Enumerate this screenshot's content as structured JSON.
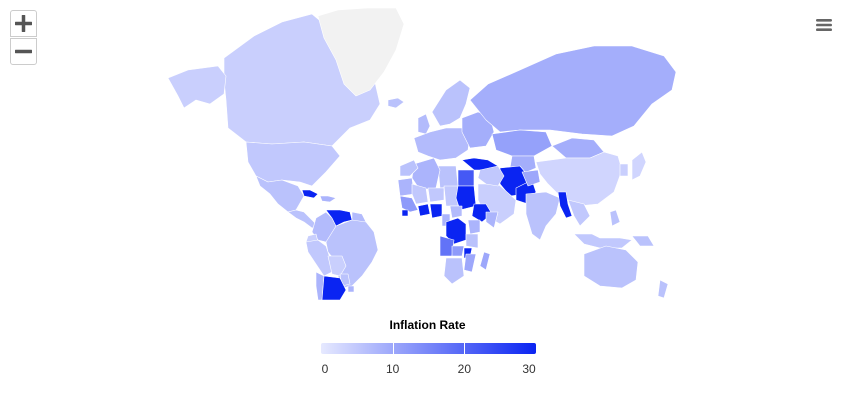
{
  "controls": {
    "zoom_in_icon": "plus-icon",
    "zoom_out_icon": "minus-icon",
    "menu_icon": "hamburger-menu-icon"
  },
  "chart_data": {
    "type": "choropleth-map",
    "title": "",
    "legend": {
      "title": "Inflation Rate",
      "min": 0,
      "max": 30,
      "ticks": [
        0,
        10,
        20,
        30
      ],
      "color_min": "#e6e9ff",
      "color_max": "#0a24f2",
      "no_data_color": "#f2f2f2"
    },
    "colors": {
      "ocean": "#ffffff",
      "border": "#ffffff",
      "zoom_icon": "#555555",
      "menu_icon": "#666666"
    },
    "regions": [
      {
        "name": "Canada",
        "value": 4
      },
      {
        "name": "Greenland",
        "value": null
      },
      {
        "name": "Alaska",
        "value": 4
      },
      {
        "name": "United States",
        "value": 5
      },
      {
        "name": "Mexico",
        "value": 6
      },
      {
        "name": "Cuba",
        "value": 30
      },
      {
        "name": "Caribbean",
        "value": 8
      },
      {
        "name": "Central America",
        "value": 6
      },
      {
        "name": "Colombia",
        "value": 7
      },
      {
        "name": "Venezuela",
        "value": 30
      },
      {
        "name": "Guianas",
        "value": 7
      },
      {
        "name": "Ecuador",
        "value": 4
      },
      {
        "name": "Peru",
        "value": 5
      },
      {
        "name": "Brazil",
        "value": 6
      },
      {
        "name": "Bolivia",
        "value": 4
      },
      {
        "name": "Paraguay",
        "value": 6
      },
      {
        "name": "Chile",
        "value": 8
      },
      {
        "name": "Argentina",
        "value": 30
      },
      {
        "name": "Uruguay",
        "value": 8
      },
      {
        "name": "Iceland",
        "value": 6
      },
      {
        "name": "United Kingdom",
        "value": 7
      },
      {
        "name": "Europe",
        "value": 7
      },
      {
        "name": "Scandinavia",
        "value": 6
      },
      {
        "name": "Eastern Europe",
        "value": 9
      },
      {
        "name": "Turkey",
        "value": 30
      },
      {
        "name": "Russia",
        "value": 9
      },
      {
        "name": "Kazakhstan",
        "value": 11
      },
      {
        "name": "Central Asia",
        "value": 9
      },
      {
        "name": "Mongolia",
        "value": 9
      },
      {
        "name": "China",
        "value": 3
      },
      {
        "name": "Japan",
        "value": 3
      },
      {
        "name": "Korea",
        "value": 4
      },
      {
        "name": "Iran",
        "value": 30
      },
      {
        "name": "Pakistan",
        "value": 30
      },
      {
        "name": "Afghanistan",
        "value": 10
      },
      {
        "name": "Arabia",
        "value": 4
      },
      {
        "name": "Iraq and Syria",
        "value": 5
      },
      {
        "name": "Egypt",
        "value": 22
      },
      {
        "name": "Libya",
        "value": 6
      },
      {
        "name": "Algeria",
        "value": 8
      },
      {
        "name": "Morocco",
        "value": 6
      },
      {
        "name": "Mauritania",
        "value": 8
      },
      {
        "name": "Mali",
        "value": 5
      },
      {
        "name": "Niger",
        "value": 5
      },
      {
        "name": "Chad",
        "value": 5
      },
      {
        "name": "Sudan",
        "value": 30
      },
      {
        "name": "Ethiopia",
        "value": 30
      },
      {
        "name": "Somalia",
        "value": 8
      },
      {
        "name": "West Africa",
        "value": 12
      },
      {
        "name": "Sierra Leone",
        "value": 30
      },
      {
        "name": "Ghana",
        "value": 30
      },
      {
        "name": "Nigeria",
        "value": 30
      },
      {
        "name": "Cameroon",
        "value": 8
      },
      {
        "name": "Central African Republic",
        "value": 7
      },
      {
        "name": "DR Congo",
        "value": 30
      },
      {
        "name": "Angola",
        "value": 18
      },
      {
        "name": "Kenya",
        "value": 8
      },
      {
        "name": "Tanzania",
        "value": 6
      },
      {
        "name": "Zambia",
        "value": 12
      },
      {
        "name": "Malawi",
        "value": 30
      },
      {
        "name": "Mozambique",
        "value": 10
      },
      {
        "name": "Southern Africa",
        "value": 6
      },
      {
        "name": "Madagascar",
        "value": 10
      },
      {
        "name": "India",
        "value": 6
      },
      {
        "name": "Myanmar",
        "value": 30
      },
      {
        "name": "Southeast Asia",
        "value": 5
      },
      {
        "name": "Indonesia",
        "value": 5
      },
      {
        "name": "Philippines",
        "value": 6
      },
      {
        "name": "Papua New Guinea",
        "value": 6
      },
      {
        "name": "Australia",
        "value": 6
      },
      {
        "name": "New Zealand",
        "value": 6
      }
    ]
  }
}
